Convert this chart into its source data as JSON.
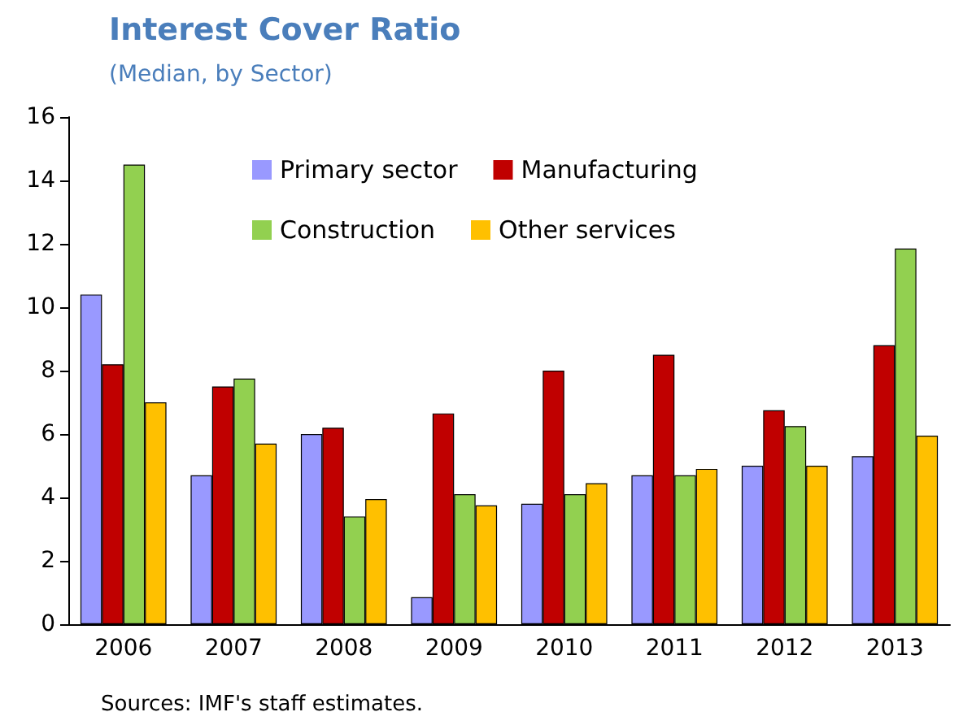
{
  "chart_data": {
    "type": "bar",
    "title": "Interest Cover Ratio",
    "subtitle": "(Median, by Sector)",
    "categories": [
      "2006",
      "2007",
      "2008",
      "2009",
      "2010",
      "2011",
      "2012",
      "2013"
    ],
    "series": [
      {
        "name": "Primary sector",
        "color": "#9999ff",
        "values": [
          10.4,
          4.7,
          6.0,
          0.85,
          3.8,
          4.7,
          5.0,
          5.3
        ]
      },
      {
        "name": "Manufacturing",
        "color": "#c00000",
        "values": [
          8.2,
          7.5,
          6.2,
          6.65,
          8.0,
          8.5,
          6.75,
          8.8
        ]
      },
      {
        "name": "Construction",
        "color": "#92d050",
        "values": [
          14.5,
          7.75,
          3.4,
          4.1,
          4.1,
          4.7,
          6.25,
          11.85
        ]
      },
      {
        "name": "Other services",
        "color": "#ffc000",
        "values": [
          7.0,
          5.7,
          3.95,
          3.75,
          4.45,
          4.9,
          5.0,
          5.95
        ]
      }
    ],
    "ylim": [
      0,
      16
    ],
    "yticks": [
      0,
      2,
      4,
      6,
      8,
      10,
      12,
      14,
      16
    ],
    "grid": false,
    "legend": "top",
    "annotations": [
      "Sources: IMF's staff estimates."
    ]
  }
}
